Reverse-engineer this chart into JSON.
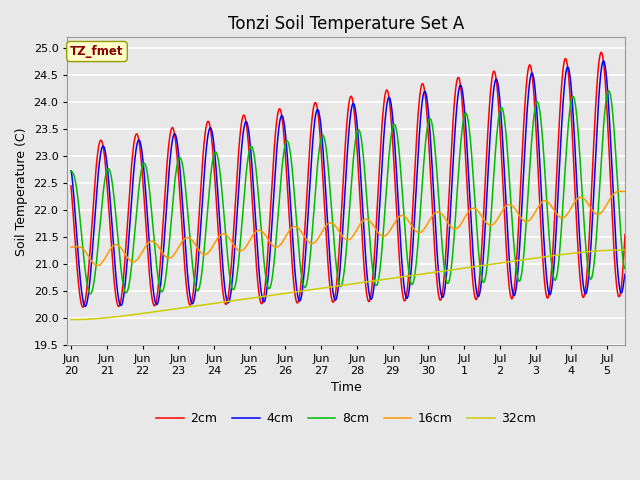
{
  "title": "Tonzi Soil Temperature Set A",
  "xlabel": "Time",
  "ylabel": "Soil Temperature (C)",
  "ylim": [
    19.5,
    25.2
  ],
  "annotation": "TZ_fmet",
  "plot_bg_color": "#e8e8e8",
  "fig_bg_color": "#e8e8e8",
  "grid_color": "white",
  "series_colors": [
    "#ff0000",
    "#0000ff",
    "#00bb00",
    "#ff9900",
    "#cccc00"
  ],
  "series_labels": [
    "2cm",
    "4cm",
    "8cm",
    "16cm",
    "32cm"
  ],
  "xtick_labels": [
    "Jun\n20",
    "Jun\n21",
    "Jun\n22",
    "Jun\n23",
    "Jun\n24",
    "Jun\n25",
    "Jun\n26",
    "Jun\n27",
    "Jun\n28",
    "Jun\n29",
    "Jun\n30",
    "Jul\n1",
    "Jul\n2",
    "Jul\n3",
    "Jul\n4",
    "Jul\n5"
  ],
  "title_fontsize": 12,
  "axis_fontsize": 9,
  "tick_fontsize": 8,
  "figsize": [
    6.4,
    4.8
  ],
  "dpi": 100
}
